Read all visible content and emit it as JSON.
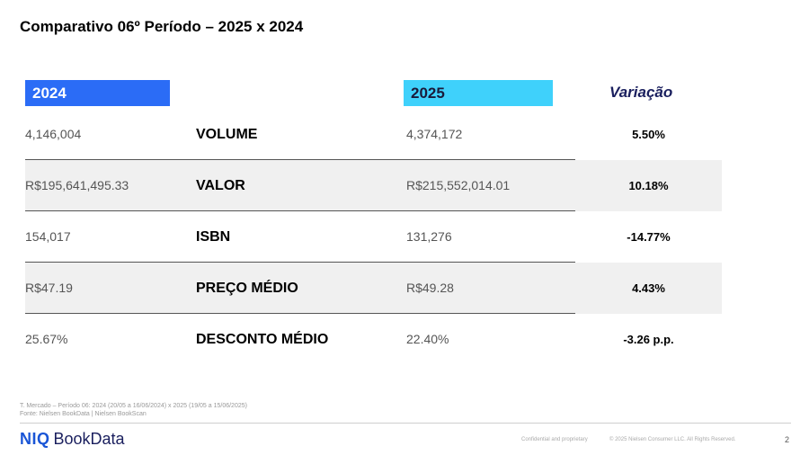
{
  "title": "Comparativo 06º Período – 2025 x 2024",
  "headers": {
    "y2024": "2024",
    "y2025": "2025",
    "variation": "Variação"
  },
  "rows": [
    {
      "metric": "VOLUME",
      "v2024": "4,146,004",
      "v2025": "4,374,172",
      "variation": "5.50%"
    },
    {
      "metric": "VALOR",
      "v2024": "R$195,641,495.33",
      "v2025": "R$215,552,014.01",
      "variation": "10.18%"
    },
    {
      "metric": "ISBN",
      "v2024": "154,017",
      "v2025": "131,276",
      "variation": "-14.77%"
    },
    {
      "metric": "PREÇO MÉDIO",
      "v2024": "R$47.19",
      "v2025": "R$49.28",
      "variation": "4.43%"
    },
    {
      "metric": "DESCONTO MÉDIO",
      "v2024": "25.67%",
      "v2025": "22.40%",
      "variation": "-3.26 p.p."
    }
  ],
  "footer": {
    "note_line1": "T. Mercado – Período 06: 2024 (20/05 a 16/06/2024) x 2025 (19/05 a 15/06/2025)",
    "note_line2": "Fonte: Nielsen BookData | Nielsen BookScan",
    "logo_niq": "NIQ",
    "logo_bookdata": "BookData",
    "confidential": "Confidential and proprietary",
    "copyright": "© 2025 Nielsen Consumer LLC. All Rights Reserved.",
    "page_number": "2"
  }
}
